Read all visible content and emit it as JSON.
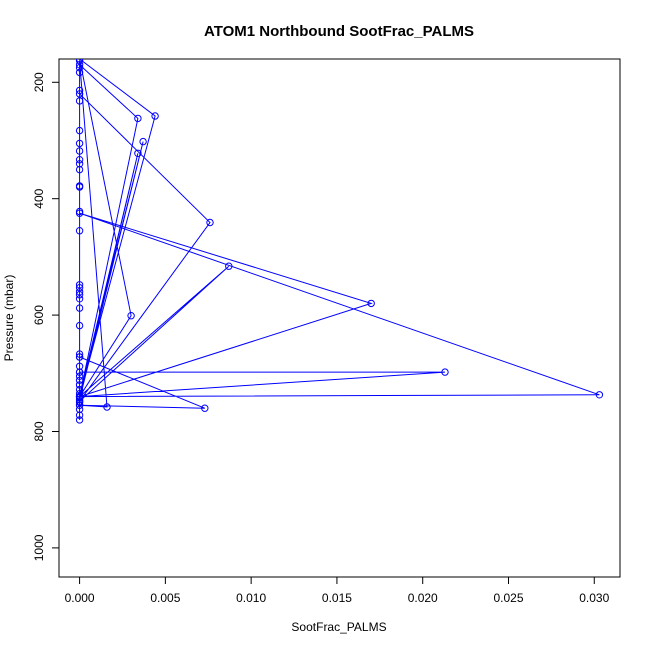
{
  "chart_data": {
    "type": "line",
    "title": "ATOM1 Northbound SootFrac_PALMS",
    "xlabel": "SootFrac_PALMS",
    "ylabel": "Pressure (mbar)",
    "xlim": [
      -0.0012,
      0.0315
    ],
    "ylim": [
      1050,
      160
    ],
    "y_reversed": true,
    "x_ticks": [
      0.0,
      0.005,
      0.01,
      0.015,
      0.02,
      0.025,
      0.03
    ],
    "x_tick_labels": [
      "0.000",
      "0.005",
      "0.010",
      "0.015",
      "0.020",
      "0.025",
      "0.030"
    ],
    "y_ticks": [
      200,
      400,
      600,
      800,
      1000
    ],
    "y_tick_labels": [
      "200",
      "400",
      "600",
      "800",
      "1000"
    ],
    "grid": false,
    "series": [
      {
        "color": "#0000ff",
        "marker": "open-circle",
        "points": [
          [
            0.0,
            780
          ],
          [
            0.0,
            772
          ],
          [
            0.0,
            762
          ],
          [
            0.0,
            750
          ],
          [
            0.0,
            742
          ],
          [
            0.0,
            735
          ],
          [
            0.0,
            728
          ],
          [
            0.0,
            720
          ],
          [
            0.0,
            712
          ],
          [
            0.0,
            705
          ],
          [
            0.0,
            698
          ],
          [
            0.0,
            688
          ],
          [
            0.0,
            672
          ],
          [
            0.0,
            667
          ],
          [
            0.0,
            618
          ],
          [
            0.0,
            588
          ],
          [
            0.0,
            572
          ],
          [
            0.0,
            565
          ],
          [
            0.0,
            560
          ],
          [
            0.0,
            553
          ],
          [
            0.0,
            548
          ],
          [
            0.0,
            455
          ],
          [
            0.0,
            422
          ],
          [
            0.0,
            378
          ],
          [
            0.0,
            350
          ],
          [
            0.0,
            340
          ],
          [
            0.0,
            333
          ],
          [
            0.0,
            318
          ],
          [
            0.0,
            305
          ],
          [
            0.0,
            283
          ],
          [
            0.0,
            232
          ],
          [
            0.0,
            214
          ],
          [
            0.0,
            183
          ],
          [
            0.0,
            163
          ],
          [
            0.0016,
            758
          ],
          [
            0.0,
            755
          ],
          [
            0.0073,
            760
          ],
          [
            0.0,
            672
          ],
          [
            0.0,
            740
          ],
          [
            0.0213,
            698
          ],
          [
            0.0,
            698
          ],
          [
            0.0,
            740
          ],
          [
            0.0303,
            737
          ],
          [
            0.0,
            425
          ],
          [
            0.017,
            580
          ],
          [
            0.0,
            740
          ],
          [
            0.0087,
            516
          ],
          [
            0.0,
            748
          ],
          [
            0.0076,
            441
          ],
          [
            0.0,
            220
          ],
          [
            0.0,
            740
          ],
          [
            0.003,
            601
          ],
          [
            0.0,
            160
          ],
          [
            0.0044,
            258
          ],
          [
            0.0,
            740
          ],
          [
            0.0034,
            322
          ],
          [
            0.0,
            745
          ],
          [
            0.0037,
            302
          ],
          [
            0.0,
            740
          ],
          [
            0.0034,
            262
          ],
          [
            0.0,
            170
          ],
          [
            0.0,
            175
          ],
          [
            0.0,
            755
          ],
          [
            0.0,
            740
          ],
          [
            0.0,
            720
          ],
          [
            0.0,
            380
          ]
        ]
      }
    ]
  }
}
